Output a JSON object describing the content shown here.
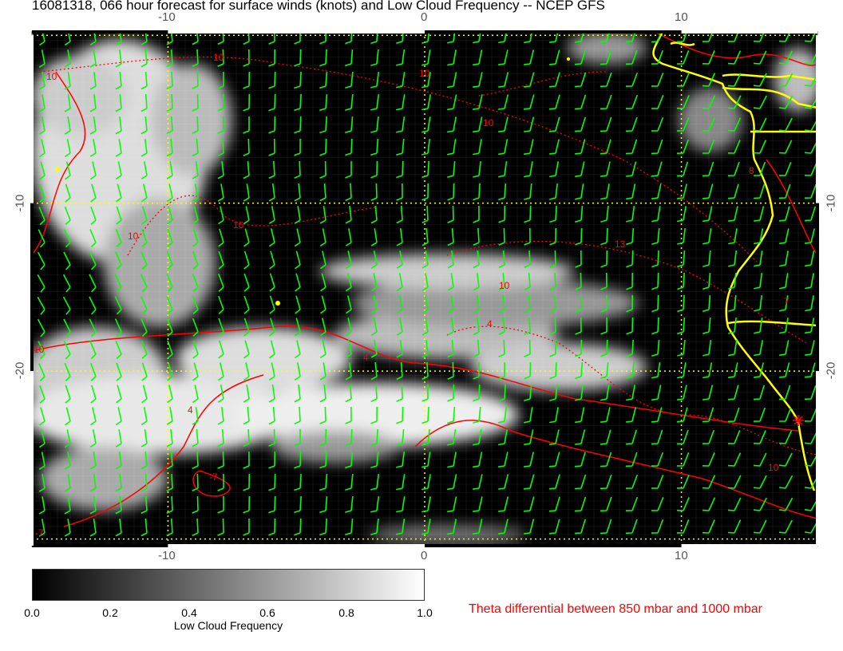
{
  "title": "16081318, 066 hour forecast for surface winds (knots) and Low Cloud Frequency -- NCEP GFS",
  "map": {
    "lon_range": [
      -15.3,
      15.3
    ],
    "lat_range": [
      -30.4,
      0.2
    ],
    "lon_ticks": [
      "-10",
      "0",
      "10"
    ],
    "lat_ticks": [
      "-10",
      "-20"
    ],
    "background": "#000000",
    "wind_barb_color": "#00ff00",
    "contour_color": "#ff0000",
    "coastline_color": "#ffff00",
    "gridline_color": "#ffff00",
    "contour_labels": [
      "10",
      "10",
      "10",
      "10",
      "10",
      "16",
      "13",
      "10",
      "4",
      "4",
      "4",
      "-7",
      "-7",
      "10",
      "8",
      "7",
      "10"
    ]
  },
  "colorbar": {
    "ticks": [
      "0.0",
      "0.2",
      "0.4",
      "0.6",
      "0.8",
      "1.0"
    ],
    "label": "Low Cloud Frequency",
    "range": [
      0.0,
      1.0
    ],
    "colormap": "gray black-to-white"
  },
  "contour_legend": "Theta differential between 850 mbar and 1000 mbar"
}
